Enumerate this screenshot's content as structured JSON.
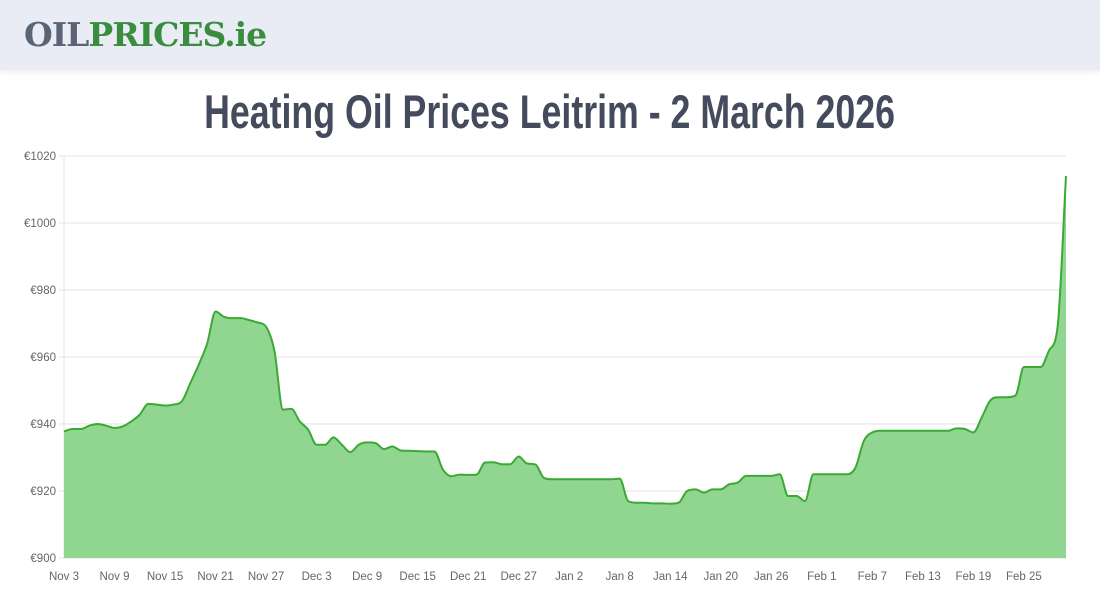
{
  "header": {
    "logo_part1": "OIL",
    "logo_part2": "PRICES.ie"
  },
  "page_title": "Heating Oil Prices Leitrim - 2 March 2026",
  "colors": {
    "line": "#3aaa35",
    "fill": "#90d590",
    "title": "#434b5c",
    "logo_oil": "#5a6477",
    "logo_prices": "#3a8c3e"
  },
  "chart_data": {
    "type": "area",
    "title": "",
    "xlabel": "",
    "ylabel": "",
    "ylim": [
      900,
      1020
    ],
    "y_ticks": [
      900,
      920,
      940,
      960,
      980,
      1000,
      1020
    ],
    "y_tick_labels": [
      "€900",
      "€920",
      "€940",
      "€960",
      "€980",
      "€1000",
      "€1020"
    ],
    "x_tick_labels": [
      "Nov 3",
      "Nov 9",
      "Nov 15",
      "Nov 21",
      "Nov 27",
      "Dec 3",
      "Dec 9",
      "Dec 15",
      "Dec 21",
      "Dec 27",
      "Jan 2",
      "Jan 8",
      "Jan 14",
      "Jan 20",
      "Jan 26",
      "Feb 1",
      "Feb 7",
      "Feb 13",
      "Feb 19",
      "Feb 25"
    ],
    "grid": true,
    "points": [
      [
        "Nov 3",
        937.8
      ],
      [
        "Nov 4",
        938.5
      ],
      [
        "Nov 5",
        938.5
      ],
      [
        "Nov 6",
        939.5
      ],
      [
        "Nov 7",
        940
      ],
      [
        "Nov 8",
        939.5
      ],
      [
        "Nov 9",
        938.8
      ],
      [
        "Nov 10",
        939.3
      ],
      [
        "Nov 11",
        940.8
      ],
      [
        "Nov 12",
        942.8
      ],
      [
        "Nov 13",
        946
      ],
      [
        "Nov 14",
        945.8
      ],
      [
        "Nov 15",
        945.5
      ],
      [
        "Nov 16",
        945.8
      ],
      [
        "Nov 17",
        946.8
      ],
      [
        "Nov 18",
        952.2
      ],
      [
        "Nov 19",
        957.7
      ],
      [
        "Nov 20",
        964
      ],
      [
        "Nov 21",
        973.6
      ],
      [
        "Nov 22",
        972
      ],
      [
        "Nov 23",
        971.6
      ],
      [
        "Nov 24",
        971.6
      ],
      [
        "Nov 25",
        971
      ],
      [
        "Nov 26",
        970.3
      ],
      [
        "Nov 27",
        969
      ],
      [
        "Nov 28",
        961.7
      ],
      [
        "Nov 29",
        944.3
      ],
      [
        "Nov 30",
        944.5
      ],
      [
        "Dec 1",
        940.8
      ],
      [
        "Dec 2",
        938.3
      ],
      [
        "Dec 3",
        933.8
      ],
      [
        "Dec 4",
        933.8
      ],
      [
        "Dec 5",
        936
      ],
      [
        "Dec 6",
        933.8
      ],
      [
        "Dec 7",
        931.6
      ],
      [
        "Dec 8",
        933.8
      ],
      [
        "Dec 9",
        934.5
      ],
      [
        "Dec 10",
        934.3
      ],
      [
        "Dec 11",
        932.5
      ],
      [
        "Dec 12",
        933.3
      ],
      [
        "Dec 13",
        932.1
      ],
      [
        "Dec 14",
        932
      ],
      [
        "Dec 15",
        931.9
      ],
      [
        "Dec 16",
        931.8
      ],
      [
        "Dec 17",
        931.8
      ],
      [
        "Dec 18",
        926.4
      ],
      [
        "Dec 19",
        924.4
      ],
      [
        "Dec 20",
        924.9
      ],
      [
        "Dec 21",
        924.8
      ],
      [
        "Dec 22",
        924.9
      ],
      [
        "Dec 23",
        928.5
      ],
      [
        "Dec 24",
        928.6
      ],
      [
        "Dec 25",
        928
      ],
      [
        "Dec 26",
        928
      ],
      [
        "Dec 27",
        930.3
      ],
      [
        "Dec 28",
        928.2
      ],
      [
        "Dec 29",
        927.9
      ],
      [
        "Dec 30",
        923.9
      ],
      [
        "Dec 31",
        923.5
      ],
      [
        "Jan 1",
        923.5
      ],
      [
        "Jan 2",
        923.5
      ],
      [
        "Jan 3",
        923.5
      ],
      [
        "Jan 4",
        923.5
      ],
      [
        "Jan 5",
        923.5
      ],
      [
        "Jan 6",
        923.5
      ],
      [
        "Jan 7",
        923.5
      ],
      [
        "Jan 8",
        923.7
      ],
      [
        "Jan 9",
        917
      ],
      [
        "Jan 10",
        916.5
      ],
      [
        "Jan 11",
        916.5
      ],
      [
        "Jan 12",
        916.3
      ],
      [
        "Jan 13",
        916.3
      ],
      [
        "Jan 14",
        916.2
      ],
      [
        "Jan 15",
        916.5
      ],
      [
        "Jan 16",
        920
      ],
      [
        "Jan 17",
        920.5
      ],
      [
        "Jan 18",
        919.5
      ],
      [
        "Jan 19",
        920.5
      ],
      [
        "Jan 20",
        920.5
      ],
      [
        "Jan 21",
        922
      ],
      [
        "Jan 22",
        922.5
      ],
      [
        "Jan 23",
        924.5
      ],
      [
        "Jan 24",
        924.5
      ],
      [
        "Jan 25",
        924.5
      ],
      [
        "Jan 26",
        924.5
      ],
      [
        "Jan 27",
        925
      ],
      [
        "Jan 28",
        918.5
      ],
      [
        "Jan 29",
        918.5
      ],
      [
        "Jan 30",
        917
      ],
      [
        "Jan 31",
        925
      ],
      [
        "Feb 1",
        925
      ],
      [
        "Feb 2",
        925
      ],
      [
        "Feb 3",
        925
      ],
      [
        "Feb 4",
        925
      ],
      [
        "Feb 5",
        927
      ],
      [
        "Feb 6",
        935
      ],
      [
        "Feb 7",
        937.5
      ],
      [
        "Feb 8",
        938
      ],
      [
        "Feb 9",
        938
      ],
      [
        "Feb 10",
        938
      ],
      [
        "Feb 11",
        938
      ],
      [
        "Feb 12",
        938
      ],
      [
        "Feb 13",
        938
      ],
      [
        "Feb 14",
        938
      ],
      [
        "Feb 15",
        938
      ],
      [
        "Feb 16",
        938
      ],
      [
        "Feb 17",
        938.7
      ],
      [
        "Feb 18",
        938.5
      ],
      [
        "Feb 19",
        937.5
      ],
      [
        "Feb 20",
        942
      ],
      [
        "Feb 21",
        947
      ],
      [
        "Feb 22",
        948
      ],
      [
        "Feb 23",
        948
      ],
      [
        "Feb 24",
        948.5
      ],
      [
        "Feb 25",
        957
      ],
      [
        "Feb 26",
        957
      ],
      [
        "Feb 27",
        957
      ],
      [
        "Feb 28",
        962
      ],
      [
        "Mar 1",
        969
      ],
      [
        "Mar 2",
        1014
      ]
    ]
  }
}
